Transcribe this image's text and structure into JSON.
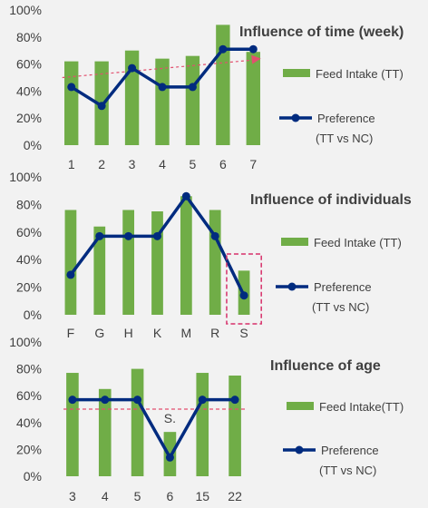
{
  "colors": {
    "bar": "#70ad47",
    "bar_edge": "#5a9a36",
    "line": "#002b7f",
    "trend": "#e2506f",
    "axis_text": "#404040",
    "background": "#f2f2f2",
    "highlight": "#d7306a"
  },
  "chart_data": [
    {
      "type": "bar",
      "title": "Influence of time (week)",
      "categories": [
        "1",
        "2",
        "3",
        "4",
        "5",
        "6",
        "7"
      ],
      "y_ticks": [
        "0%",
        "20%",
        "40%",
        "60%",
        "80%",
        "100%"
      ],
      "ylim": [
        0,
        100
      ],
      "grid": false,
      "legend_position": "right",
      "series": [
        {
          "name": "Feed Intake (TT)",
          "type": "bar",
          "values": [
            62,
            62,
            70,
            64,
            66,
            89,
            69
          ]
        },
        {
          "name": "Preference (TT vs NC)",
          "name_lines": [
            "Preference",
            "(TT vs NC)"
          ],
          "type": "line",
          "values": [
            43,
            29,
            57,
            43,
            43,
            71,
            71
          ]
        }
      ],
      "trendline": {
        "style": "dashed arrow",
        "from": [
          1,
          50
        ],
        "to": [
          7,
          64
        ]
      },
      "annotations": []
    },
    {
      "type": "bar",
      "title": "Influence of individuals",
      "categories": [
        "F",
        "G",
        "H",
        "K",
        "M",
        "R",
        "S"
      ],
      "y_ticks": [
        "0%",
        "20%",
        "40%",
        "60%",
        "80%",
        "100%"
      ],
      "ylim": [
        0,
        100
      ],
      "grid": false,
      "legend_position": "right",
      "series": [
        {
          "name": "Feed Intake (TT)",
          "type": "bar",
          "values": [
            76,
            64,
            76,
            75,
            86,
            76,
            32
          ]
        },
        {
          "name": "Preference (TT vs NC)",
          "name_lines": [
            "Preference",
            "(TT vs NC)"
          ],
          "type": "line",
          "values": [
            29,
            57,
            57,
            57,
            86,
            57,
            14
          ]
        }
      ],
      "highlight_category": "S",
      "annotations": []
    },
    {
      "type": "bar",
      "title": "Influence of age",
      "categories": [
        "3",
        "4",
        "5",
        "6",
        "15",
        "22"
      ],
      "y_ticks": [
        "0%",
        "20%",
        "40%",
        "60%",
        "80%",
        "100%"
      ],
      "ylim": [
        0,
        100
      ],
      "grid": false,
      "legend_position": "right",
      "series": [
        {
          "name": "Feed Intake(TT)",
          "type": "bar",
          "values": [
            77,
            65,
            80,
            33,
            77,
            75
          ]
        },
        {
          "name": "Preference (TT vs NC)",
          "name_lines": [
            "Preference",
            "(TT vs NC)"
          ],
          "type": "line",
          "values": [
            57,
            57,
            57,
            14,
            57,
            57
          ]
        }
      ],
      "reference_line": {
        "style": "dashed",
        "value": 50
      },
      "annotations": [
        {
          "category": "6",
          "text": "S."
        }
      ]
    }
  ]
}
